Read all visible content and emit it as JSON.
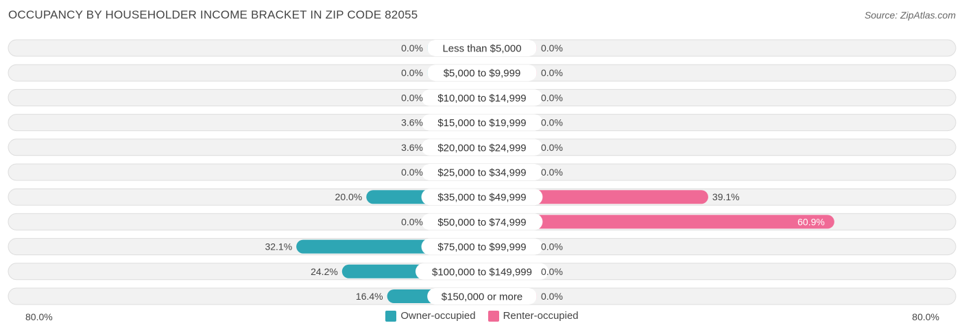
{
  "header": {
    "title": "OCCUPANCY BY HOUSEHOLDER INCOME BRACKET IN ZIP CODE 82055",
    "source": "Source: ZipAtlas.com"
  },
  "colors": {
    "owner_dark": "#2ea6b4",
    "owner_light": "#82cdd4",
    "renter_dark": "#f06a96",
    "renter_light": "#f7a8c2",
    "row_bg": "#f2f2f2",
    "row_border": "#dddddd"
  },
  "chart_data": {
    "type": "bar",
    "orientation": "diverging-horizontal",
    "categories": [
      "Less than $5,000",
      "$5,000 to $9,999",
      "$10,000 to $14,999",
      "$15,000 to $19,999",
      "$20,000 to $24,999",
      "$25,000 to $34,999",
      "$35,000 to $49,999",
      "$50,000 to $74,999",
      "$75,000 to $99,999",
      "$100,000 to $149,999",
      "$150,000 or more"
    ],
    "series": [
      {
        "name": "Owner-occupied",
        "values": [
          0.0,
          0.0,
          0.0,
          3.6,
          3.6,
          0.0,
          20.0,
          0.0,
          32.1,
          24.2,
          16.4
        ],
        "labels": [
          "0.0%",
          "0.0%",
          "0.0%",
          "3.6%",
          "3.6%",
          "0.0%",
          "20.0%",
          "0.0%",
          "32.1%",
          "24.2%",
          "16.4%"
        ]
      },
      {
        "name": "Renter-occupied",
        "values": [
          0.0,
          0.0,
          0.0,
          0.0,
          0.0,
          0.0,
          39.1,
          60.9,
          0.0,
          0.0,
          0.0
        ],
        "labels": [
          "0.0%",
          "0.0%",
          "0.0%",
          "0.0%",
          "0.0%",
          "0.0%",
          "39.1%",
          "60.9%",
          "0.0%",
          "0.0%",
          "0.0%"
        ]
      }
    ],
    "axis": {
      "max": 80.0,
      "left_label": "80.0%",
      "right_label": "80.0%"
    },
    "legend_position": "bottom-center"
  }
}
